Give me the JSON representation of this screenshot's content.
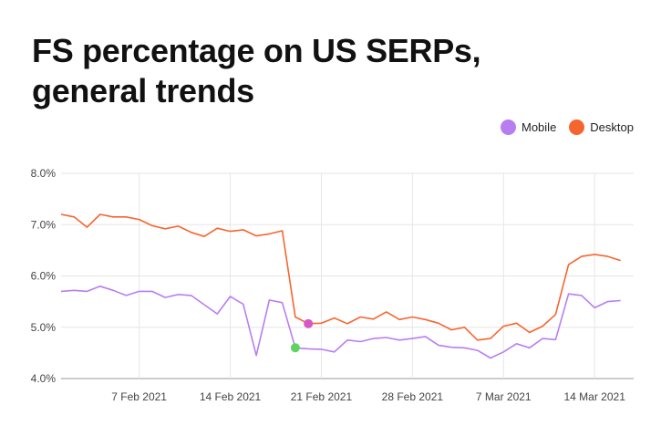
{
  "title_line1": "FS percentage on US SERPs,",
  "title_line2": "general trends",
  "colors": {
    "mobile": "#B87EF0",
    "desktop": "#F7652F",
    "mobile_marker": "#5ED45E",
    "desktop_marker": "#D857C8"
  },
  "legend": [
    {
      "label": "Mobile",
      "color": "#B87EF0"
    },
    {
      "label": "Desktop",
      "color": "#F7652F"
    }
  ],
  "chart_data": {
    "type": "line",
    "title": "FS percentage on US SERPs, general trends",
    "xlabel": "",
    "ylabel": "",
    "ylim": [
      4.0,
      8.0
    ],
    "y_ticks": [
      "4.0%",
      "5.0%",
      "6.0%",
      "7.0%",
      "8.0%"
    ],
    "y_tick_values": [
      4.0,
      5.0,
      6.0,
      7.0,
      8.0
    ],
    "x_range": [
      0,
      44
    ],
    "x_ticks": [
      {
        "index": 6,
        "label": "7 Feb 2021"
      },
      {
        "index": 13,
        "label": "14 Feb 2021"
      },
      {
        "index": 20,
        "label": "21 Feb 2021"
      },
      {
        "index": 27,
        "label": "28 Feb 2021"
      },
      {
        "index": 34,
        "label": "7 Mar 2021"
      },
      {
        "index": 41,
        "label": "14 Mar 2021"
      }
    ],
    "grid": true,
    "legend_position": "top-right",
    "series": [
      {
        "name": "Mobile",
        "color": "#B87EF0",
        "values": [
          5.7,
          5.72,
          5.7,
          5.8,
          5.72,
          5.62,
          5.7,
          5.7,
          5.58,
          5.64,
          5.62,
          5.44,
          5.26,
          5.6,
          5.45,
          4.45,
          5.53,
          5.48,
          4.6,
          4.58,
          4.57,
          4.52,
          4.75,
          4.72,
          4.78,
          4.8,
          4.75,
          4.78,
          4.82,
          4.65,
          4.61,
          4.6,
          4.55,
          4.4,
          4.52,
          4.68,
          4.6,
          4.78,
          4.76,
          5.65,
          5.62,
          5.38,
          5.5,
          5.52
        ]
      },
      {
        "name": "Desktop",
        "color": "#F7652F",
        "values": [
          7.2,
          7.15,
          6.95,
          7.2,
          7.15,
          7.15,
          7.1,
          6.98,
          6.92,
          6.97,
          6.85,
          6.77,
          6.93,
          6.87,
          6.9,
          6.78,
          6.82,
          6.88,
          5.2,
          5.07,
          5.08,
          5.18,
          5.07,
          5.2,
          5.16,
          5.3,
          5.15,
          5.2,
          5.15,
          5.08,
          4.95,
          5.0,
          4.75,
          4.78,
          5.02,
          5.08,
          4.9,
          5.02,
          5.25,
          6.22,
          6.38,
          6.42,
          6.38,
          6.3
        ]
      }
    ],
    "markers": [
      {
        "series": "Mobile",
        "index": 18,
        "value": 4.6,
        "color": "#5ED45E"
      },
      {
        "series": "Desktop",
        "index": 19,
        "value": 5.07,
        "color": "#D857C8"
      }
    ]
  }
}
